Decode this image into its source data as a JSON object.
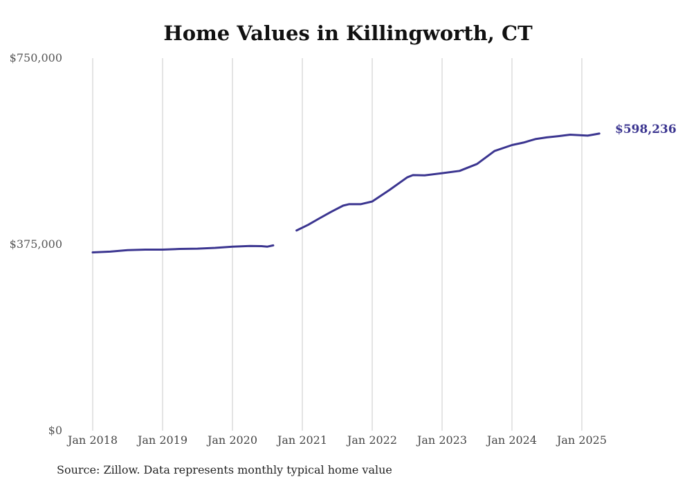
{
  "chart_data": {
    "type": "line",
    "title": "Home Values in Killingworth, CT",
    "xlabel": "",
    "ylabel": "",
    "source": "Source: Zillow. Data represents monthly typical home value",
    "ylim": [
      0,
      750000
    ],
    "y_ticks": [
      {
        "value": 0,
        "label": "$0"
      },
      {
        "value": 375000,
        "label": "$375,000"
      },
      {
        "value": 750000,
        "label": "$750,000"
      }
    ],
    "x_ticks": [
      {
        "value": "2018-01",
        "label": "Jan 2018"
      },
      {
        "value": "2019-01",
        "label": "Jan 2019"
      },
      {
        "value": "2020-01",
        "label": "Jan 2020"
      },
      {
        "value": "2021-01",
        "label": "Jan 2021"
      },
      {
        "value": "2022-01",
        "label": "Jan 2022"
      },
      {
        "value": "2023-01",
        "label": "Jan 2023"
      },
      {
        "value": "2024-01",
        "label": "Jan 2024"
      },
      {
        "value": "2025-01",
        "label": "Jan 2025"
      }
    ],
    "grid": "vertical",
    "line_color": "#3b3590",
    "end_label": "$598,236",
    "segments": [
      [
        [
          "2018-01",
          359000
        ],
        [
          "2018-04",
          360500
        ],
        [
          "2018-07",
          363500
        ],
        [
          "2018-10",
          364500
        ],
        [
          "2019-01",
          364500
        ],
        [
          "2019-04",
          366000
        ],
        [
          "2019-07",
          366500
        ],
        [
          "2019-10",
          368000
        ],
        [
          "2020-01",
          370500
        ],
        [
          "2020-04",
          372000
        ],
        [
          "2020-06",
          371500
        ],
        [
          "2020-07",
          370500
        ],
        [
          "2020-08",
          373000
        ]
      ],
      [
        [
          "2020-12",
          403000
        ],
        [
          "2021-02",
          414500
        ],
        [
          "2021-04",
          428000
        ],
        [
          "2021-06",
          441000
        ],
        [
          "2021-08",
          453000
        ],
        [
          "2021-09",
          456000
        ],
        [
          "2021-11",
          456000
        ],
        [
          "2022-01",
          461500
        ],
        [
          "2022-04",
          485000
        ],
        [
          "2022-07",
          510000
        ],
        [
          "2022-08",
          514500
        ],
        [
          "2022-10",
          514000
        ],
        [
          "2023-01",
          518500
        ],
        [
          "2023-04",
          523000
        ],
        [
          "2023-07",
          537000
        ],
        [
          "2023-10",
          563000
        ],
        [
          "2024-01",
          575000
        ],
        [
          "2024-03",
          580000
        ],
        [
          "2024-05",
          587000
        ],
        [
          "2024-07",
          590500
        ],
        [
          "2024-09",
          593000
        ],
        [
          "2024-11",
          596000
        ],
        [
          "2025-02",
          594000
        ],
        [
          "2025-04",
          598236
        ]
      ]
    ]
  }
}
